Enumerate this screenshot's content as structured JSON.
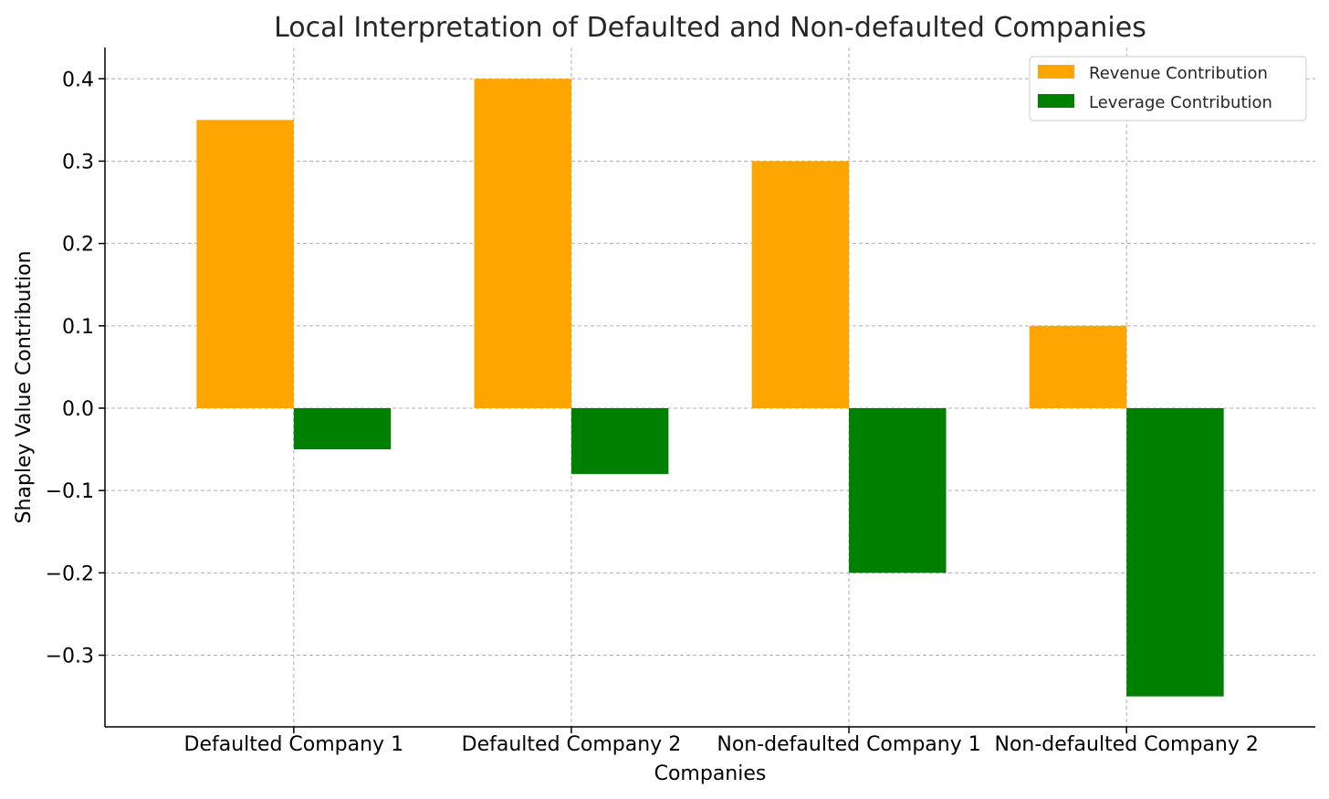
{
  "chart_data": {
    "type": "bar",
    "title": "Local Interpretation of Defaulted and Non-defaulted Companies",
    "xlabel": "Companies",
    "ylabel": "Shapley Value Contribution",
    "categories": [
      "Defaulted Company 1",
      "Defaulted Company 2",
      "Non-defaulted Company 1",
      "Non-defaulted Company 2"
    ],
    "series": [
      {
        "name": "Revenue Contribution",
        "color": "#ffa500",
        "values": [
          0.35,
          0.4,
          0.3,
          0.1
        ]
      },
      {
        "name": "Leverage Contribution",
        "color": "#008000",
        "values": [
          -0.05,
          -0.08,
          -0.2,
          -0.35
        ]
      }
    ],
    "yticks": [
      0.4,
      0.3,
      0.2,
      0.1,
      0.0,
      -0.1,
      -0.2,
      -0.3
    ],
    "ytick_labels": [
      "0.4",
      "0.3",
      "0.2",
      "0.1",
      "0.0",
      "−0.1",
      "−0.2",
      "−0.3"
    ],
    "ylim": [
      -0.387,
      0.438
    ],
    "grid": true,
    "legend_position": "top-right"
  }
}
